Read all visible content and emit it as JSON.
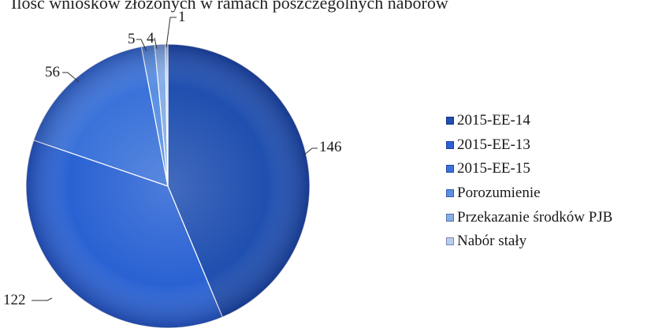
{
  "chart_data": {
    "type": "pie",
    "title": "Ilość wniosków złożonych w ramach poszczególnych naborów",
    "categories": [
      "2015-EE-14",
      "2015-EE-13",
      "2015-EE-15",
      "Porozumienie",
      "Przekazanie środków PJB",
      "Nabór stały"
    ],
    "values": [
      146,
      122,
      56,
      5,
      4,
      1
    ],
    "data_labels": [
      "146",
      "122",
      "56",
      "5",
      "4",
      "1"
    ],
    "colors": [
      "#1f4fb0",
      "#2a62d3",
      "#3a72d9",
      "#5a8fe2",
      "#86aee8",
      "#b9cdee"
    ],
    "legend": "right",
    "start_angle_deg": 0,
    "direction": "clockwise"
  }
}
